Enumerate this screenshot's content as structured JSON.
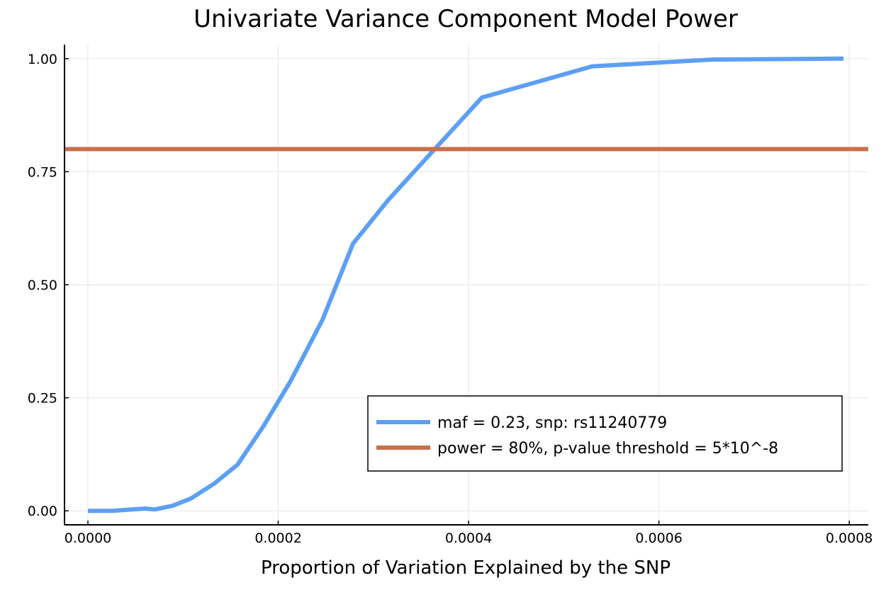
{
  "chart_data": {
    "type": "line",
    "title": "Univariate Variance Component Model Power",
    "xlabel": "Proportion of Variation Explained by the SNP",
    "ylabel": "",
    "xlim": [
      -2.46e-05,
      0.00082
    ],
    "ylim": [
      -0.031,
      1.031
    ],
    "xticks": [
      0,
      0.0002,
      0.0004,
      0.0006,
      0.0008
    ],
    "xtick_labels": [
      "0.0000",
      "0.0002",
      "0.0004",
      "0.0006",
      "0.0008"
    ],
    "yticks": [
      0,
      0.25,
      0.5,
      0.75,
      1.0
    ],
    "ytick_labels": [
      "0.00",
      "0.25",
      "0.50",
      "0.75",
      "1.00"
    ],
    "grid": true,
    "legend_placement": "bottom-right",
    "series": [
      {
        "name": "maf = 0.23, snp: rs11240779",
        "color": "#5c9ff5",
        "x": [
          0,
          2.53e-05,
          6.03e-05,
          7e-05,
          8.86e-05,
          0.000108,
          0.0001326,
          0.0001572,
          0.0001847,
          0.000213,
          0.0002466,
          0.0002786,
          0.0003158,
          0.000414,
          0.00053,
          0.000656,
          0.000794
        ],
        "y": [
          0,
          0,
          0.005,
          0.003,
          0.011,
          0.027,
          0.06,
          0.102,
          0.188,
          0.287,
          0.423,
          0.591,
          0.688,
          0.914,
          0.983,
          0.998,
          1.0
        ]
      },
      {
        "name": "power = 80%, p-value threshold = 5*10^-8",
        "color": "#c8704a",
        "hline": 0.8
      }
    ]
  }
}
